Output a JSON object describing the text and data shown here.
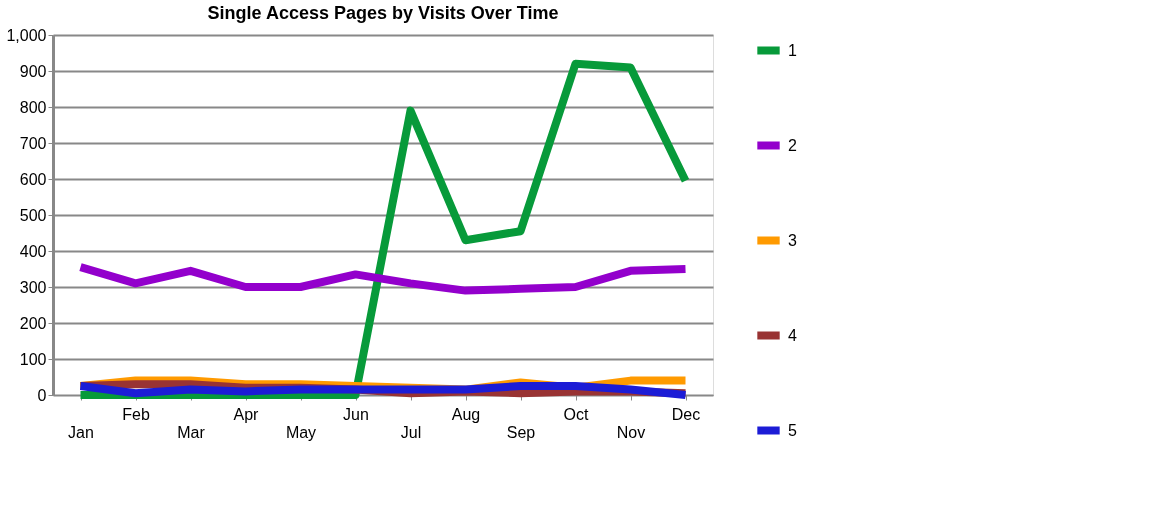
{
  "chart_data": {
    "type": "line",
    "title": "Single Access Pages by Visits Over Time",
    "categories": [
      "Jan",
      "Feb",
      "Mar",
      "Apr",
      "May",
      "Jun",
      "Jul",
      "Aug",
      "Sep",
      "Oct",
      "Nov",
      "Dec"
    ],
    "series": [
      {
        "name": "1",
        "color": "#079a3a",
        "values": [
          0,
          0,
          0,
          0,
          0,
          0,
          790,
          430,
          455,
          920,
          910,
          595
        ]
      },
      {
        "name": "2",
        "color": "#9300cc",
        "values": [
          355,
          310,
          345,
          300,
          300,
          335,
          310,
          290,
          295,
          300,
          345,
          350
        ]
      },
      {
        "name": "3",
        "color": "#ff9a00",
        "values": [
          25,
          40,
          40,
          30,
          30,
          25,
          20,
          15,
          35,
          20,
          40,
          40
        ]
      },
      {
        "name": "4",
        "color": "#993333",
        "values": [
          25,
          30,
          30,
          20,
          20,
          15,
          5,
          10,
          5,
          10,
          10,
          5
        ]
      },
      {
        "name": "5",
        "color": "#1c1cd6",
        "values": [
          25,
          5,
          15,
          10,
          15,
          15,
          15,
          15,
          25,
          25,
          15,
          0
        ]
      }
    ],
    "ylim": [
      0,
      1000
    ],
    "yticks": [
      0,
      {
        "value": 100,
        "label": "100"
      },
      200,
      300,
      400,
      500,
      600,
      700,
      800,
      900,
      {
        "value": 1000,
        "label": "1,000"
      }
    ],
    "grid": "y",
    "legend": "right",
    "marker": "none",
    "line_style": "solid"
  }
}
